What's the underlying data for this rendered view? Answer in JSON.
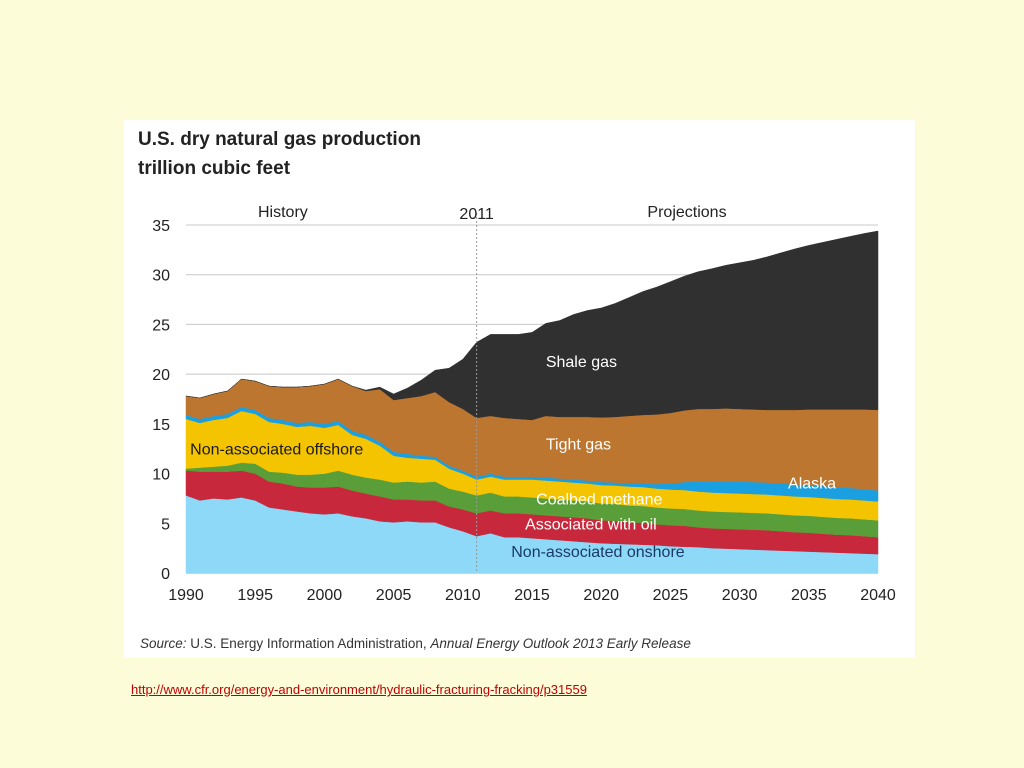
{
  "slide": {
    "background": "#fdfcd8",
    "link_text": "http://www.cfr.org/energy-and-environment/hydraulic-fracturing-fracking/p31559",
    "link_color": "#c00000"
  },
  "chart_data": {
    "type": "area",
    "stacked": true,
    "title": "U.S. dry natural gas production",
    "subtitle": "trillion cubic feet",
    "ylim": [
      0,
      35
    ],
    "xlim": [
      1990,
      2040
    ],
    "y_ticks": [
      "0",
      "5",
      "10",
      "15",
      "20",
      "25",
      "30",
      "35"
    ],
    "x_ticks": [
      "1990",
      "1995",
      "2000",
      "2005",
      "2010",
      "2015",
      "2020",
      "2025",
      "2030",
      "2035",
      "2040"
    ],
    "grid": "horizontal",
    "region_labels": {
      "history": "History",
      "projections": "Projections",
      "divider": "2011"
    },
    "divider_x": 2011,
    "source_prefix": "Source:",
    "source_text": "U.S. Energy Information Administration,",
    "source_italic": "Annual Energy Outlook 2013 Early Release",
    "x": [
      1990,
      1991,
      1992,
      1993,
      1994,
      1995,
      1996,
      1997,
      1998,
      1999,
      2000,
      2001,
      2002,
      2003,
      2004,
      2005,
      2006,
      2007,
      2008,
      2009,
      2010,
      2011,
      2012,
      2013,
      2014,
      2015,
      2016,
      2017,
      2018,
      2019,
      2020,
      2021,
      2022,
      2023,
      2024,
      2025,
      2026,
      2027,
      2028,
      2029,
      2030,
      2031,
      2032,
      2033,
      2034,
      2035,
      2036,
      2037,
      2038,
      2039,
      2040
    ],
    "series": [
      {
        "name": "Non-associated onshore",
        "color": "#8ed8f8",
        "label_x": 2013.5,
        "label_y": 1.6,
        "label_color": "#1a3a66",
        "values": [
          7.8,
          7.3,
          7.5,
          7.4,
          7.6,
          7.3,
          6.6,
          6.4,
          6.2,
          6.0,
          5.9,
          6.0,
          5.7,
          5.5,
          5.2,
          5.1,
          5.2,
          5.1,
          5.1,
          4.6,
          4.2,
          3.7,
          4.0,
          3.6,
          3.6,
          3.5,
          3.4,
          3.3,
          3.2,
          3.1,
          3.0,
          2.95,
          2.9,
          2.85,
          2.8,
          2.7,
          2.65,
          2.6,
          2.5,
          2.45,
          2.4,
          2.35,
          2.3,
          2.25,
          2.2,
          2.15,
          2.1,
          2.05,
          2.0,
          1.95,
          1.9
        ]
      },
      {
        "name": "Associated with oil",
        "color": "#c8283c",
        "label_x": 2014.5,
        "label_y": 4.35,
        "label_color": "#ffffff",
        "values": [
          2.5,
          2.9,
          2.7,
          2.8,
          2.7,
          2.7,
          2.6,
          2.6,
          2.5,
          2.6,
          2.7,
          2.7,
          2.6,
          2.5,
          2.5,
          2.3,
          2.2,
          2.2,
          2.2,
          2.1,
          2.2,
          2.3,
          2.3,
          2.4,
          2.4,
          2.4,
          2.4,
          2.4,
          2.4,
          2.4,
          2.3,
          2.3,
          2.2,
          2.2,
          2.1,
          2.1,
          2.1,
          2.0,
          2.0,
          2.0,
          2.0,
          2.0,
          2.0,
          1.95,
          1.9,
          1.9,
          1.85,
          1.8,
          1.8,
          1.75,
          1.7
        ]
      },
      {
        "name": "Coalbed methane",
        "color": "#5a9e3a",
        "label_x": 2015.3,
        "label_y": 6.9,
        "label_color": "#ffffff",
        "values": [
          0.2,
          0.4,
          0.5,
          0.6,
          0.8,
          1.0,
          1.0,
          1.1,
          1.2,
          1.3,
          1.4,
          1.6,
          1.6,
          1.6,
          1.7,
          1.7,
          1.8,
          1.8,
          1.9,
          1.8,
          1.8,
          1.8,
          1.8,
          1.7,
          1.7,
          1.7,
          1.7,
          1.7,
          1.7,
          1.7,
          1.7,
          1.7,
          1.7,
          1.7,
          1.7,
          1.7,
          1.7,
          1.7,
          1.7,
          1.7,
          1.7,
          1.7,
          1.7,
          1.7,
          1.7,
          1.7,
          1.7,
          1.7,
          1.7,
          1.7,
          1.7
        ]
      },
      {
        "name": "Non-associated offshore",
        "color": "#f5c400",
        "label_x": 1990.3,
        "label_y": 11.9,
        "label_color": "#1a1a1a",
        "values": [
          5.0,
          4.5,
          4.7,
          4.8,
          5.2,
          5.0,
          5.0,
          4.9,
          4.8,
          4.9,
          4.6,
          4.6,
          4.0,
          3.9,
          3.4,
          2.7,
          2.4,
          2.4,
          2.2,
          2.0,
          1.8,
          1.6,
          1.6,
          1.7,
          1.7,
          1.8,
          1.8,
          1.8,
          1.8,
          1.8,
          1.85,
          1.85,
          1.9,
          1.9,
          1.9,
          1.9,
          1.9,
          1.9,
          1.9,
          1.9,
          1.9,
          1.9,
          1.9,
          1.9,
          1.9,
          1.9,
          1.9,
          1.9,
          1.9,
          1.9,
          1.9
        ]
      },
      {
        "name": "Alaska",
        "color": "#1aa0e0",
        "label_x": 2033.5,
        "label_y": 8.5,
        "label_color": "#ffffff",
        "values": [
          0.4,
          0.4,
          0.4,
          0.4,
          0.4,
          0.4,
          0.4,
          0.4,
          0.4,
          0.4,
          0.4,
          0.4,
          0.4,
          0.4,
          0.4,
          0.4,
          0.4,
          0.3,
          0.3,
          0.3,
          0.3,
          0.3,
          0.3,
          0.3,
          0.3,
          0.3,
          0.3,
          0.3,
          0.3,
          0.3,
          0.3,
          0.3,
          0.3,
          0.35,
          0.45,
          0.6,
          0.8,
          1.0,
          1.1,
          1.2,
          1.2,
          1.2,
          1.2,
          1.2,
          1.2,
          1.2,
          1.2,
          1.2,
          1.15,
          1.15,
          1.1
        ]
      },
      {
        "name": "Tight gas",
        "color": "#bd7630",
        "label_x": 2016.0,
        "label_y": 12.4,
        "label_color": "#ffffff",
        "values": [
          1.9,
          2.1,
          2.2,
          2.3,
          2.8,
          2.9,
          3.2,
          3.3,
          3.6,
          3.6,
          4.0,
          4.2,
          4.5,
          4.4,
          5.3,
          5.2,
          5.6,
          6.0,
          6.5,
          6.4,
          6.2,
          5.9,
          5.8,
          5.9,
          5.8,
          5.7,
          6.2,
          6.2,
          6.3,
          6.4,
          6.5,
          6.6,
          6.8,
          6.9,
          7.0,
          7.1,
          7.2,
          7.3,
          7.3,
          7.3,
          7.3,
          7.3,
          7.3,
          7.4,
          7.5,
          7.6,
          7.7,
          7.8,
          7.9,
          8.0,
          8.1
        ]
      },
      {
        "name": "Shale gas",
        "color": "#303030",
        "label_x": 2016.0,
        "label_y": 20.7,
        "label_color": "#ffffff",
        "values": [
          0,
          0,
          0,
          0,
          0,
          0,
          0,
          0,
          0,
          0,
          0,
          0,
          0,
          0.1,
          0.2,
          0.6,
          1.0,
          1.6,
          2.2,
          3.4,
          5.0,
          7.6,
          8.2,
          8.4,
          8.5,
          8.8,
          9.3,
          9.7,
          10.3,
          10.7,
          11.0,
          11.4,
          11.9,
          12.4,
          12.8,
          13.2,
          13.5,
          13.8,
          14.1,
          14.4,
          14.7,
          15.0,
          15.4,
          15.8,
          16.2,
          16.5,
          16.8,
          17.1,
          17.4,
          17.7,
          18.0
        ]
      }
    ]
  }
}
